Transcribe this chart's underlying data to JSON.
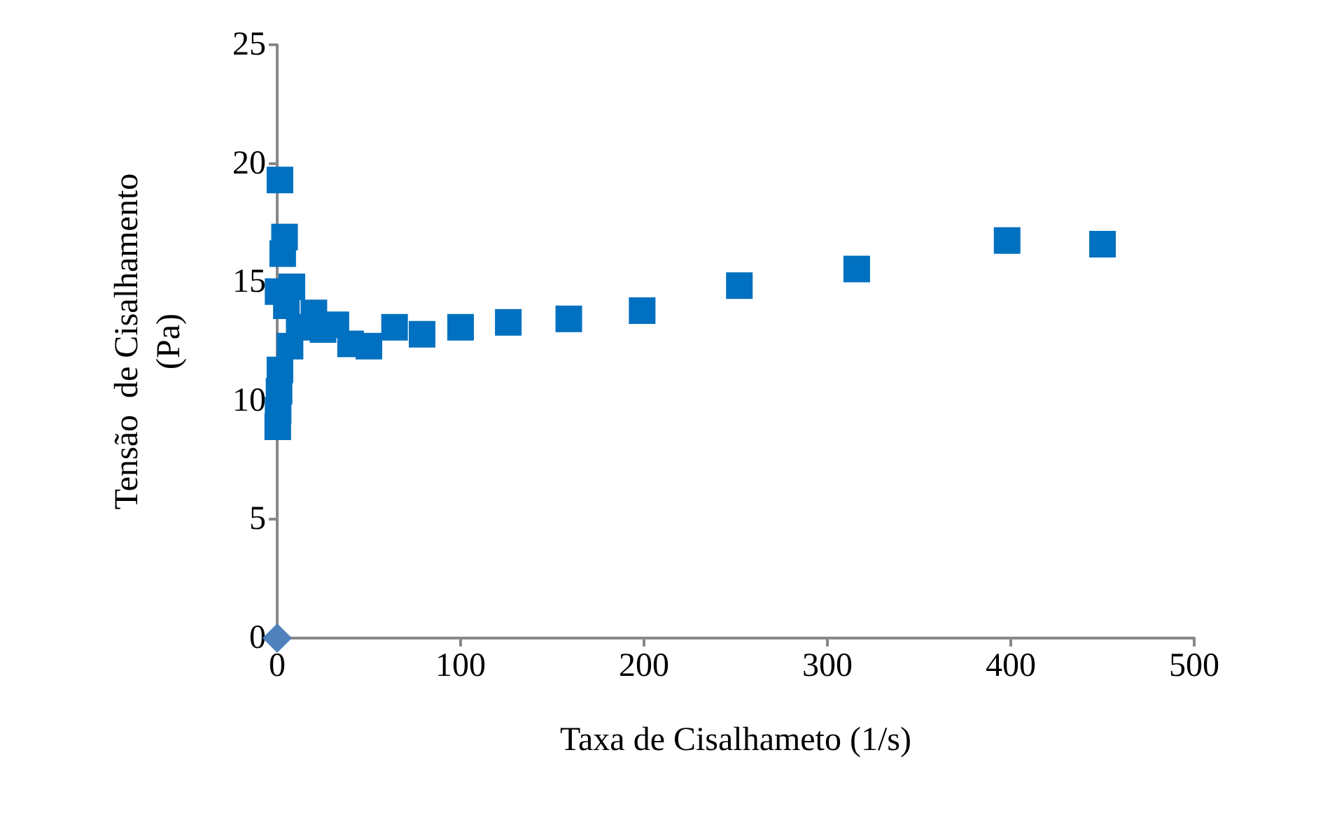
{
  "chart_data": {
    "type": "scatter",
    "xlabel": "Taxa de Cisalhameto (1/s)",
    "ylabel": "Tensão  de Cisalhamento (Pa)",
    "xlim": [
      0,
      500
    ],
    "xticks": [
      0,
      100,
      200,
      300,
      400,
      500
    ],
    "ylim": [
      0,
      25
    ],
    "yticks": [
      0,
      5,
      10,
      15,
      20,
      25
    ],
    "grid": false,
    "series": [
      {
        "color": "#0070c0",
        "marker": "square",
        "x": [
          0.3,
          0.5,
          1,
          1.5,
          1.5,
          3,
          4,
          0.5,
          5,
          8,
          7,
          12,
          20,
          25,
          32,
          40,
          50,
          64,
          79,
          100,
          126,
          159,
          199,
          252,
          316,
          398,
          450
        ],
        "values": [
          8.9,
          9.6,
          10.4,
          11.3,
          19.3,
          16.2,
          16.9,
          14.6,
          14.0,
          14.8,
          12.3,
          13.1,
          13.7,
          13.0,
          13.2,
          12.4,
          12.3,
          13.1,
          12.8,
          13.1,
          13.3,
          13.45,
          13.8,
          14.85,
          15.55,
          16.75,
          16.6
        ]
      },
      {
        "color": "#4f81bd",
        "marker": "diamond",
        "x": [
          0
        ],
        "values": [
          0
        ]
      }
    ]
  }
}
